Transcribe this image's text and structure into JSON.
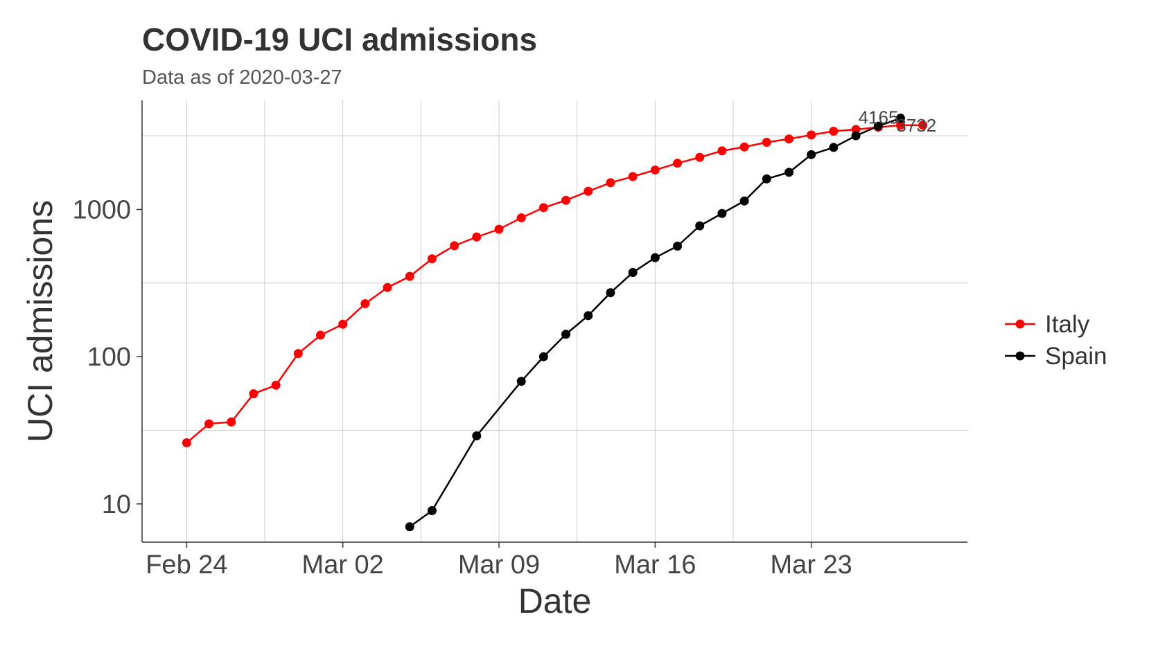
{
  "chart_data": {
    "type": "line",
    "title": "COVID-19 UCI admissions",
    "subtitle": "Data as of 2020-03-27",
    "xlabel": "Date",
    "ylabel": "UCI  admissions",
    "y_scale": "log10",
    "ylim": [
      5.5,
      5500
    ],
    "xlim": [
      "2020-02-22",
      "2020-03-30"
    ],
    "x_ticks": [
      {
        "date": "2020-02-24",
        "label": "Feb 24"
      },
      {
        "date": "2020-03-02",
        "label": "Mar 02"
      },
      {
        "date": "2020-03-09",
        "label": "Mar 09"
      },
      {
        "date": "2020-03-16",
        "label": "Mar 16"
      },
      {
        "date": "2020-03-23",
        "label": "Mar 23"
      }
    ],
    "y_ticks": [
      10,
      100,
      1000
    ],
    "grid": true,
    "legend_position": "right",
    "series": [
      {
        "name": "Italy",
        "color": "#ff0000",
        "end_label": "3732",
        "x": [
          "2020-02-24",
          "2020-02-25",
          "2020-02-26",
          "2020-02-27",
          "2020-02-28",
          "2020-02-29",
          "2020-03-01",
          "2020-03-02",
          "2020-03-03",
          "2020-03-04",
          "2020-03-05",
          "2020-03-06",
          "2020-03-07",
          "2020-03-08",
          "2020-03-09",
          "2020-03-10",
          "2020-03-11",
          "2020-03-12",
          "2020-03-13",
          "2020-03-14",
          "2020-03-15",
          "2020-03-16",
          "2020-03-17",
          "2020-03-18",
          "2020-03-19",
          "2020-03-20",
          "2020-03-21",
          "2020-03-22",
          "2020-03-23",
          "2020-03-24",
          "2020-03-25",
          "2020-03-26",
          "2020-03-27",
          "2020-03-28"
        ],
        "values": [
          26,
          35,
          36,
          56,
          64,
          105,
          140,
          166,
          229,
          295,
          351,
          462,
          567,
          650,
          733,
          877,
          1028,
          1153,
          1328,
          1518,
          1672,
          1851,
          2060,
          2257,
          2498,
          2655,
          2857,
          3009,
          3204,
          3396,
          3489,
          3612,
          3732,
          3732
        ]
      },
      {
        "name": "Spain",
        "color": "#000000",
        "end_label": "4165",
        "x": [
          "2020-03-05",
          "2020-03-06",
          "2020-03-08",
          "2020-03-10",
          "2020-03-11",
          "2020-03-12",
          "2020-03-13",
          "2020-03-14",
          "2020-03-15",
          "2020-03-16",
          "2020-03-17",
          "2020-03-18",
          "2020-03-19",
          "2020-03-20",
          "2020-03-21",
          "2020-03-22",
          "2020-03-23",
          "2020-03-24",
          "2020-03-25",
          "2020-03-26",
          "2020-03-27"
        ],
        "values": [
          7,
          9,
          29,
          68,
          100,
          142,
          190,
          272,
          373,
          470,
          563,
          774,
          939,
          1141,
          1612,
          1785,
          2355,
          2636,
          3166,
          3679,
          4165
        ]
      }
    ]
  }
}
